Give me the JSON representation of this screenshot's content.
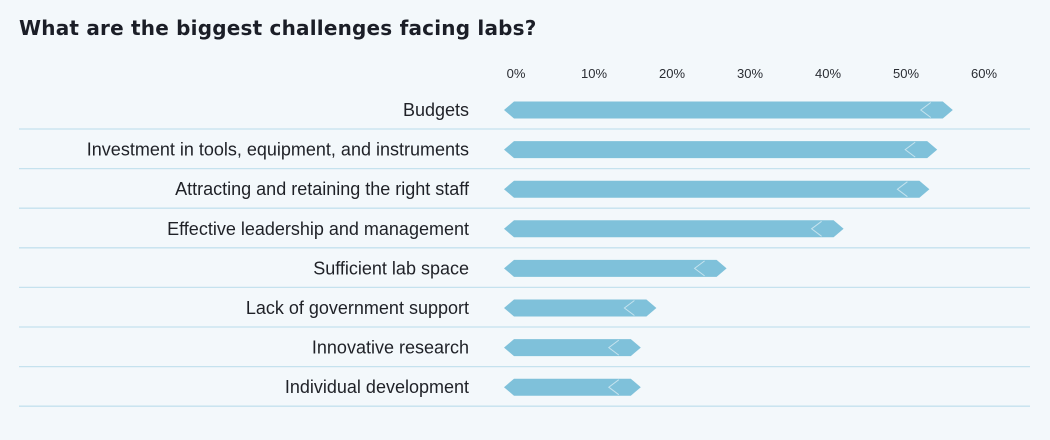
{
  "chart_data": {
    "type": "bar",
    "orientation": "horizontal",
    "title": "What are the biggest challenges facing labs?",
    "categories": [
      "Budgets",
      "Investment in tools, equipment, and instruments",
      "Attracting and retaining the right staff",
      "Effective leadership and management",
      "Sufficient lab space",
      "Lack of government support",
      "Innovative research",
      "Individual development"
    ],
    "values": [
      56,
      54,
      53,
      42,
      27,
      18,
      16,
      16
    ],
    "xlim": [
      0,
      60
    ],
    "xticks": [
      "0%",
      "10%",
      "20%",
      "30%",
      "40%",
      "50%",
      "60%"
    ],
    "xtick_values": [
      0,
      10,
      20,
      30,
      40,
      50,
      60
    ],
    "axis_position": "top",
    "bar_color": "#7fc1da",
    "grid": false,
    "legend": "none"
  }
}
